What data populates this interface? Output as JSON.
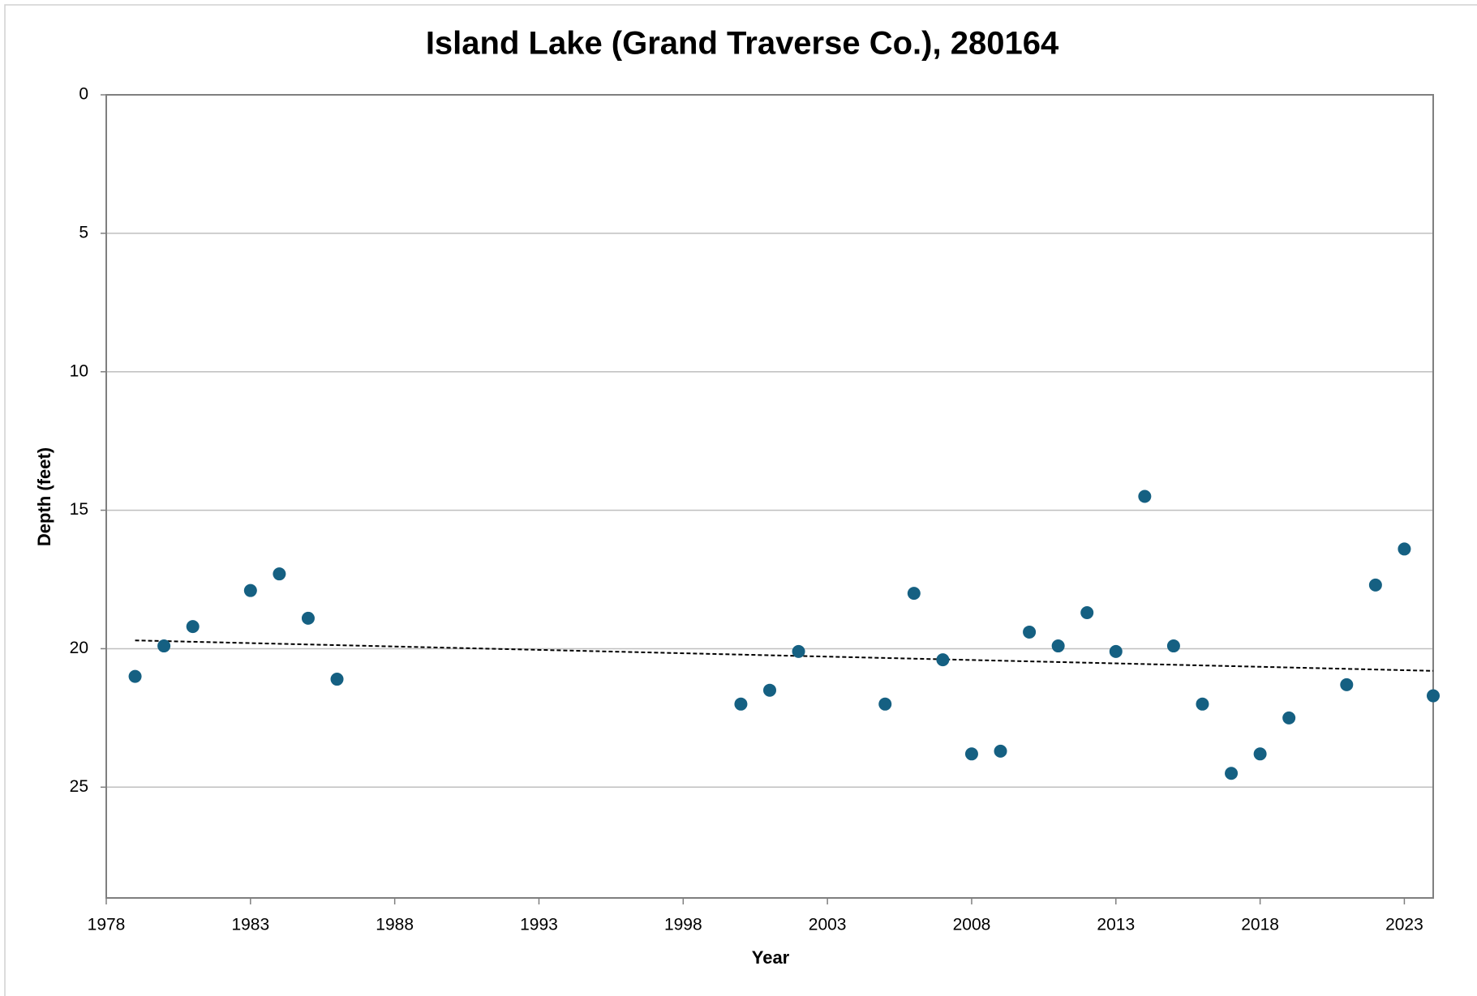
{
  "chart_data": {
    "type": "scatter",
    "title": "Island Lake (Grand Traverse Co.), 280164",
    "x_label": "Year",
    "y_label": "Depth (feet)",
    "x": [
      1979,
      1980,
      1981,
      1983,
      1984,
      1985,
      1986,
      2000,
      2001,
      2002,
      2005,
      2006,
      2007,
      2008,
      2009,
      2010,
      2011,
      2012,
      2013,
      2014,
      2015,
      2016,
      2017,
      2018,
      2019,
      2021,
      2022,
      2023,
      2024
    ],
    "values": [
      21.0,
      19.9,
      19.2,
      17.9,
      17.3,
      18.9,
      21.1,
      22.0,
      21.5,
      20.1,
      22.0,
      18.0,
      20.4,
      23.8,
      23.7,
      19.4,
      19.9,
      18.7,
      20.1,
      14.5,
      19.9,
      22.0,
      24.5,
      23.8,
      22.5,
      21.3,
      17.7,
      16.4,
      21.7
    ],
    "color": "#156082",
    "trendline": {
      "x": [
        1979,
        2024
      ],
      "values": [
        19.7,
        20.8
      ],
      "color": "#000000",
      "dashed": true
    },
    "xlim": [
      1978,
      2024
    ],
    "xticks": [
      1978,
      1983,
      1988,
      1993,
      1998,
      2003,
      2008,
      2013,
      2018,
      2023
    ],
    "ylim": [
      0,
      29
    ],
    "yticks": [
      0,
      5,
      10,
      15,
      20,
      25
    ],
    "y_reversed": true,
    "grid": true
  }
}
